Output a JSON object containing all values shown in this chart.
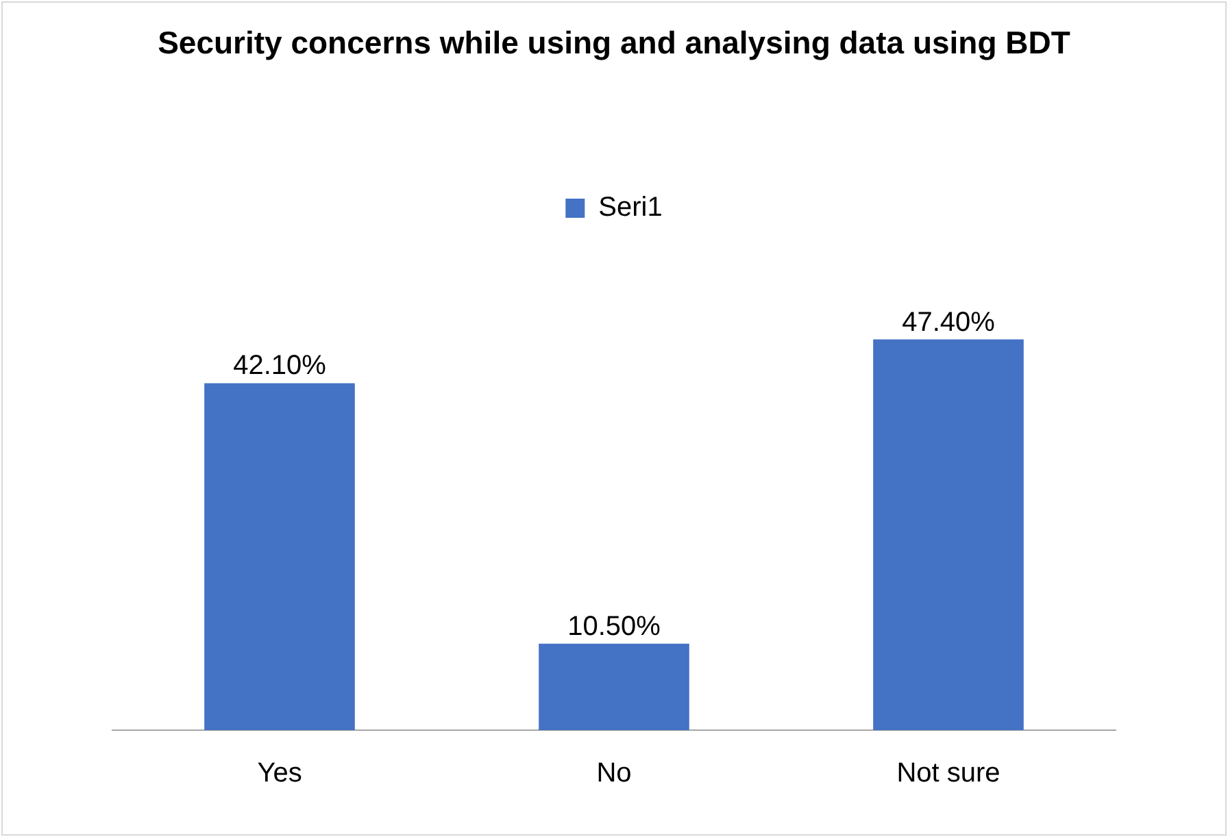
{
  "chart_data": {
    "type": "bar",
    "title": "Security concerns while using and analysing data using BDT",
    "categories": [
      "Yes",
      "No",
      "Not sure"
    ],
    "series": [
      {
        "name": "Seri1",
        "color": "#4472c4",
        "values": [
          42.1,
          10.5,
          47.4
        ],
        "value_labels": [
          "42.10%",
          "10.50%",
          "47.40%"
        ]
      }
    ],
    "legend": "top",
    "grid": false
  }
}
